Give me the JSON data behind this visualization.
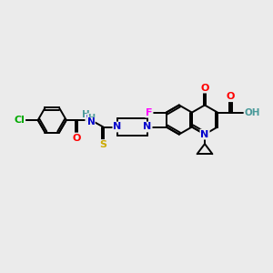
{
  "bg_color": "#ebebeb",
  "bond_color": "#000000",
  "bond_width": 1.4,
  "atom_colors": {
    "C": "#000000",
    "N": "#0000cc",
    "O": "#ff0000",
    "F": "#ff00ff",
    "S": "#ccaa00",
    "Cl": "#00aa00",
    "H": "#4a9a9a",
    "OH": "#ff0000"
  },
  "figsize": [
    3.0,
    3.0
  ],
  "dpi": 100,
  "xlim": [
    0,
    10
  ],
  "ylim": [
    0,
    10
  ]
}
